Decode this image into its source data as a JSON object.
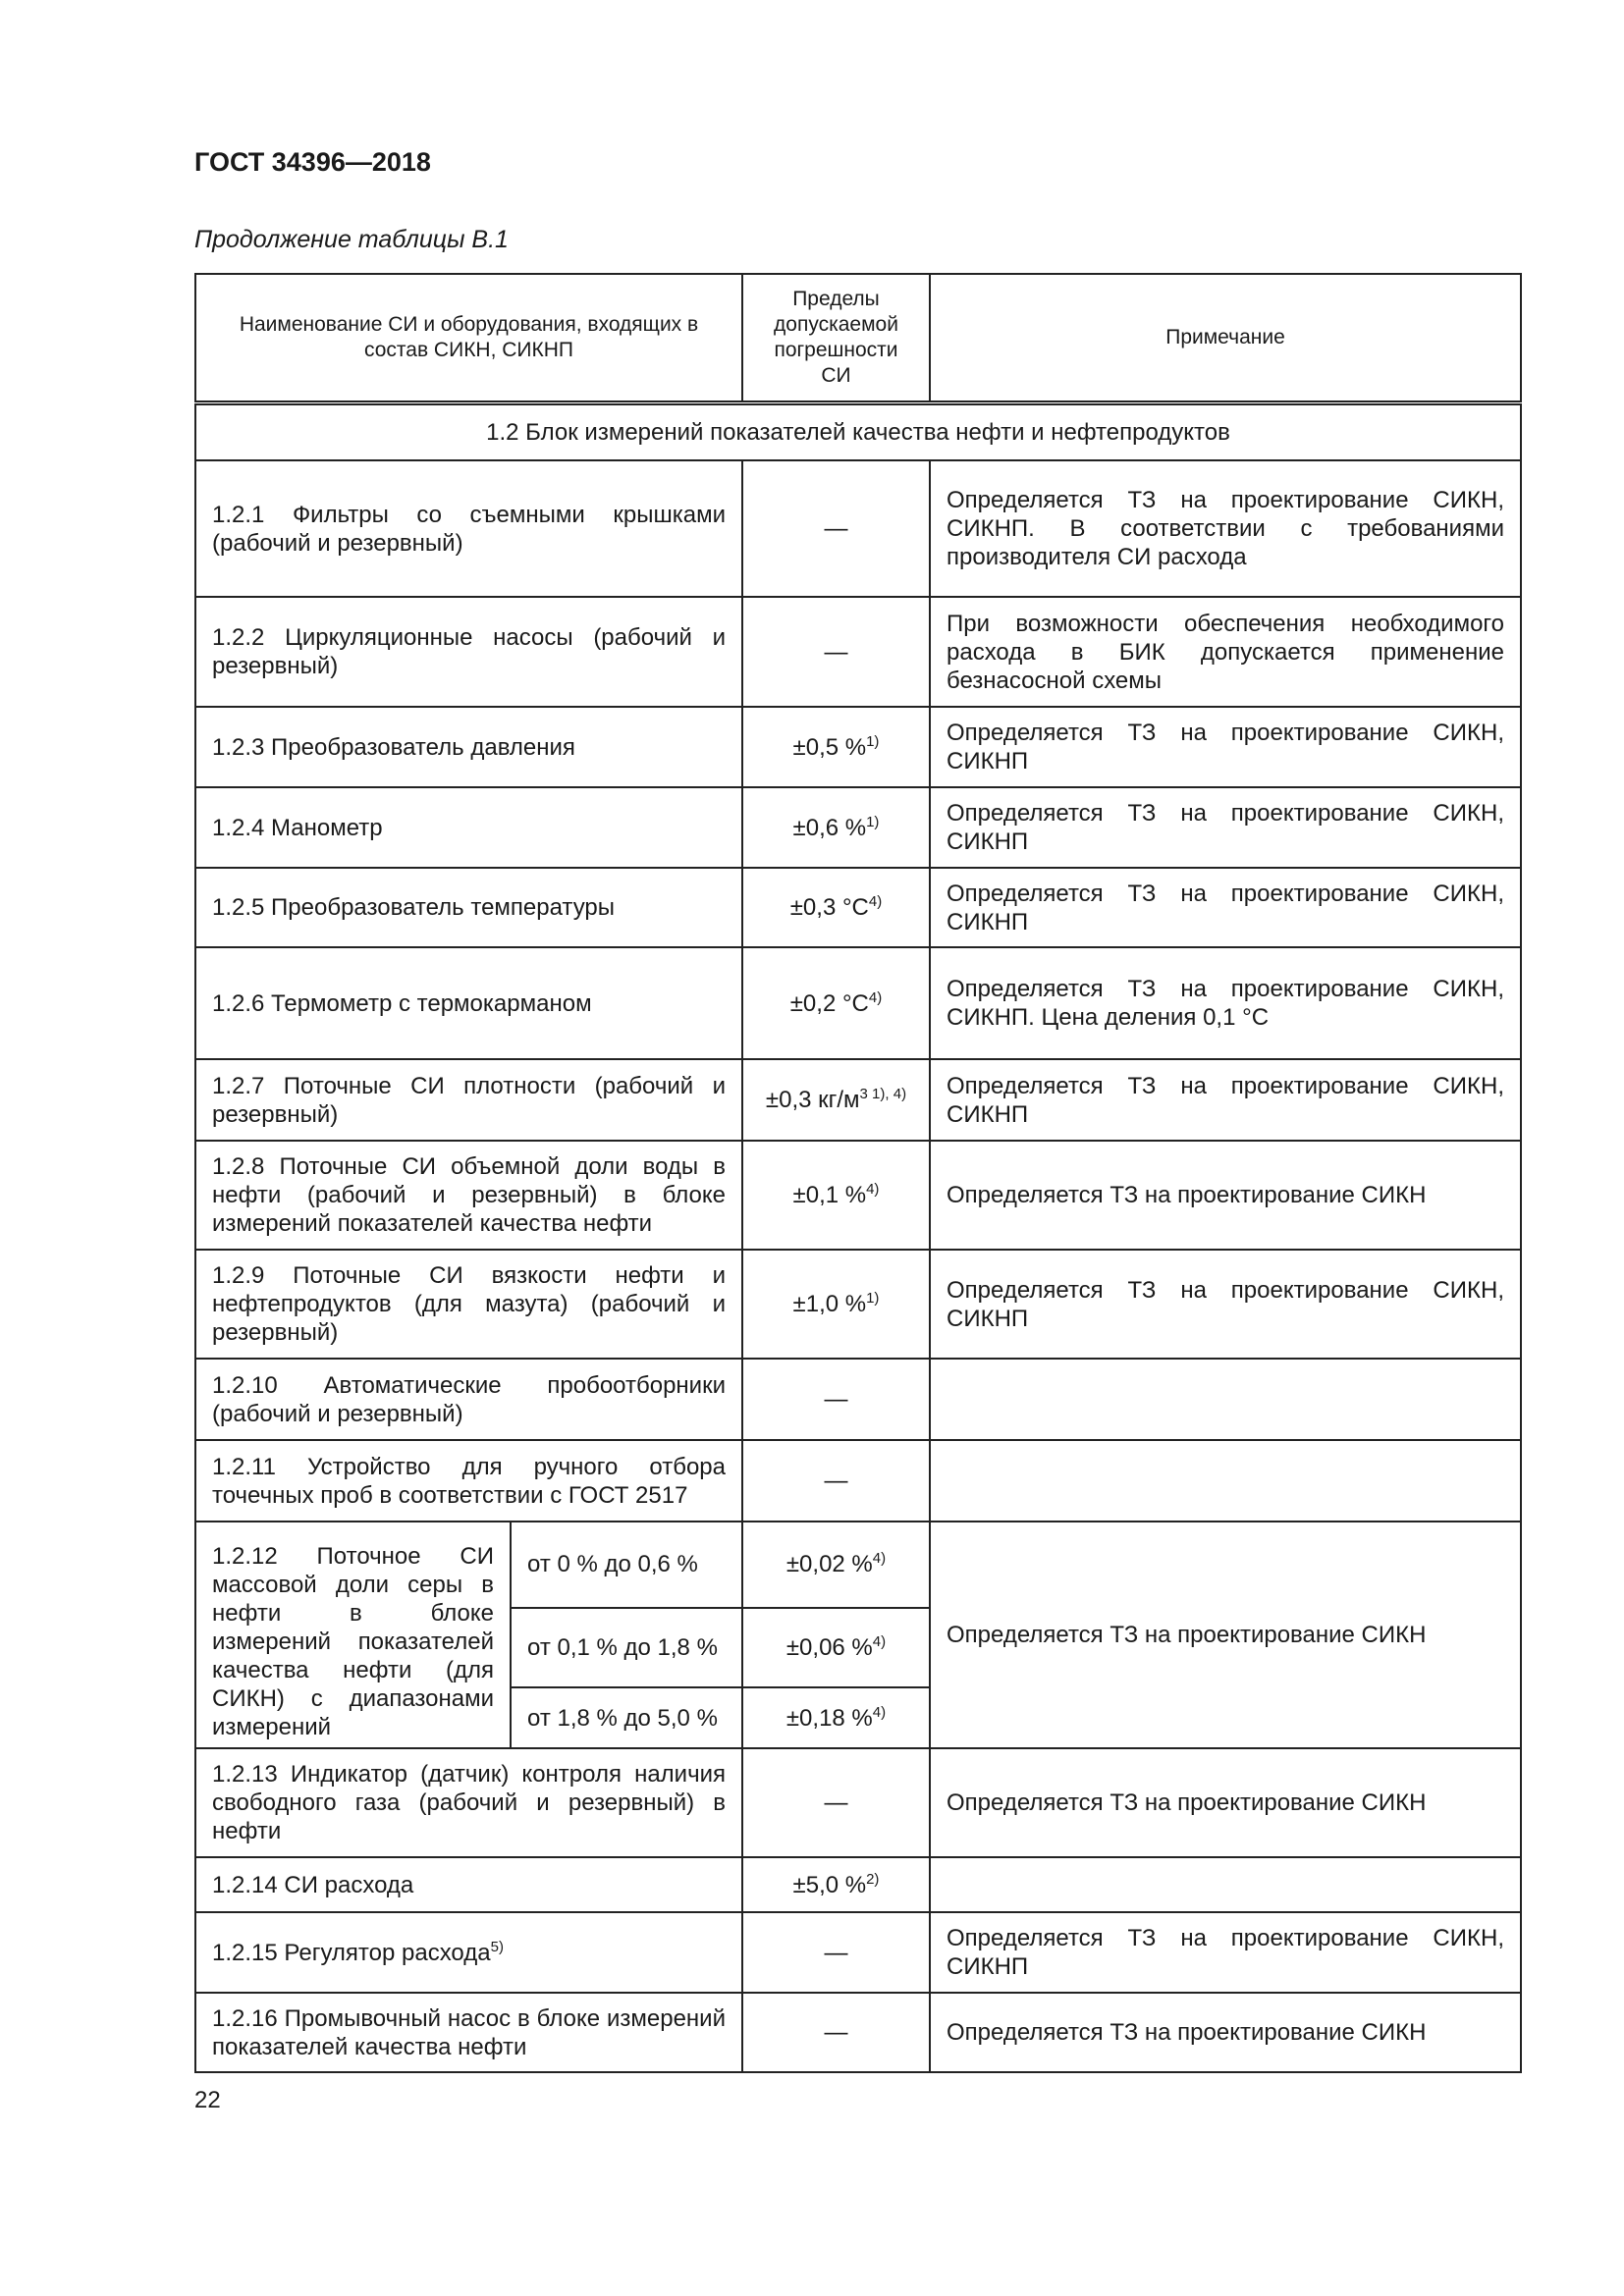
{
  "header": {
    "title": "ГОСТ 34396—2018",
    "subtitle": "Продолжение таблицы В.1"
  },
  "table": {
    "columns": [
      "Наименование СИ и оборудования, входящих в состав СИКН, СИКНП",
      "Пределы допускаемой погрешности СИ",
      "Примечание"
    ],
    "section": "1.2  Блок измерений показателей качества нефти и нефтепродуктов",
    "rows": [
      {
        "name": "1.2.1  Фильтры со съемными крышками (рабочий и резервный)",
        "error": "—",
        "note": "Определяется ТЗ на проектирование СИКН, СИКНП. В соответствии с требованиями производителя СИ расхода"
      },
      {
        "name": "1.2.2  Циркуляционные насосы (рабочий и резервный)",
        "error": "—",
        "note": "При возможности обеспечения необходимого расхода в БИК допускается применение безнасосной схемы"
      },
      {
        "name": "1.2.3  Преобразователь давления",
        "error": "±0,5 %",
        "sup": "1)",
        "note": "Определяется ТЗ на проектирование СИКН, СИКНП"
      },
      {
        "name": "1.2.4  Манометр",
        "error": "±0,6 %",
        "sup": "1)",
        "note": "Определяется ТЗ на проектирование СИКН, СИКНП"
      },
      {
        "name": "1.2.5  Преобразователь температуры",
        "error": "±0,3 °С",
        "sup": "4)",
        "note": "Определяется ТЗ на проектирование СИКН, СИКНП"
      },
      {
        "name": "1.2.6  Термометр с термокарманом",
        "error": "±0,2 °С",
        "sup": "4)",
        "note": "Определяется ТЗ на проектирование СИКН, СИКНП. Цена деления 0,1 °С"
      },
      {
        "name": "1.2.7  Поточные СИ плотности (рабочий и резервный)",
        "error": "±0,3 кг/м",
        "sup": "3 1), 4)",
        "note": "Определяется ТЗ на проектирование СИКН, СИКНП"
      },
      {
        "name": "1.2.8  Поточные СИ объемной доли воды в нефти (рабочий и резервный) в блоке измерений показателей качества нефти",
        "error": "±0,1 %",
        "sup": "4)",
        "note": "Определяется ТЗ на проектирование СИКН"
      },
      {
        "name": "1.2.9  Поточные СИ вязкости нефти и нефтепродуктов (для мазута) (рабочий и резервный)",
        "error": "±1,0 %",
        "sup": "1)",
        "note": "Определяется ТЗ на проектирование СИКН, СИКНП"
      },
      {
        "name": "1.2.10  Автоматические пробоотборники (рабочий и резервный)",
        "error": "—",
        "note": ""
      },
      {
        "name": "1.2.11  Устройство для ручного отбора точечных проб в соответствии с ГОСТ 2517",
        "error": "—",
        "note": ""
      }
    ],
    "row12": {
      "name": "1.2.12 Поточное СИ массовой доли серы в нефти в блоке измерений показателей качества нефти (для СИКН) с диапазонами измерений",
      "note": "Определяется ТЗ на проектирование СИКН",
      "ranges": [
        {
          "range": "от 0 % до 0,6 %",
          "error": "±0,02 %",
          "sup": "4)"
        },
        {
          "range": "от 0,1 % до 1,8 %",
          "error": "±0,06 %",
          "sup": "4)"
        },
        {
          "range": "от 1,8 % до 5,0 %",
          "error": "±0,18 %",
          "sup": "4)"
        }
      ]
    },
    "rows_after": [
      {
        "name": "1.2.13  Индикатор (датчик) контроля наличия свободного газа (рабочий и резервный) в нефти",
        "error": "—",
        "note": "Определяется ТЗ на проектирование СИКН"
      },
      {
        "name": "1.2.14  СИ расхода",
        "error": "±5,0 %",
        "sup": "2)",
        "note": ""
      },
      {
        "name": "1.2.15  Регулятор расхода",
        "name_sup": "5)",
        "error": "—",
        "note": "Определяется ТЗ на проектирование СИКН, СИКНП"
      },
      {
        "name": "1.2.16  Промывочный насос в блоке измерений показателей качества нефти",
        "error": "—",
        "note": "Определяется ТЗ на проектирование СИКН"
      }
    ]
  },
  "footer": {
    "page": "22"
  }
}
